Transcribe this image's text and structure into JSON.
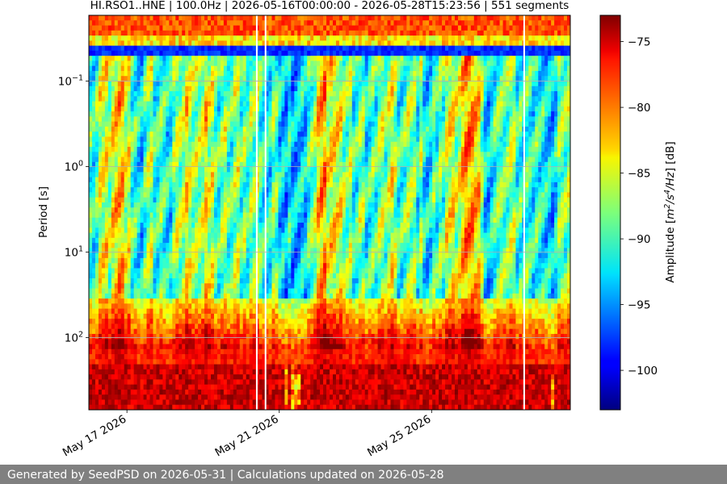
{
  "chart_data": {
    "type": "heatmap",
    "title": "HI.RSO1..HNE | 100.0Hz | 2026-05-16T00:00:00 - 2026-05-28T15:23:56 | 551 segments",
    "ylabel": "Period [s]",
    "y_scale": "log",
    "y_inverted": true,
    "ylim": [
      0.017,
      700
    ],
    "y_tick_labels": [
      {
        "value": 0.1,
        "base": "10",
        "exp": "−1"
      },
      {
        "value": 1,
        "base": "10",
        "exp": "0"
      },
      {
        "value": 10,
        "base": "10",
        "exp": "1"
      },
      {
        "value": 100,
        "base": "10",
        "exp": "2"
      }
    ],
    "xlim": [
      "2026-05-16T00:00:00",
      "2026-05-28T15:23:56"
    ],
    "x_tick_labels": [
      {
        "date": "2026-05-17",
        "label": "May 17 2026"
      },
      {
        "date": "2026-05-21",
        "label": "May 21 2026"
      },
      {
        "date": "2026-05-25",
        "label": "May 25 2026"
      }
    ],
    "grid": true,
    "segments": 551,
    "data_gaps": [
      [
        "2026-05-20T09:20",
        "2026-05-20T09:45"
      ],
      [
        "2026-05-20T14:50",
        "2026-05-20T15:05"
      ],
      [
        "2026-05-27T09:50",
        "2026-05-27T10:25"
      ]
    ],
    "colorbar": {
      "label_prefix": "Amplitude [",
      "label_unit_html": "m<sup>2</sup>/s<sup>4</sup>/Hz",
      "label_suffix": "] [dB]",
      "range": [
        -103,
        -73
      ],
      "ticks": [
        -75,
        -80,
        -85,
        -90,
        -95,
        -100
      ],
      "tick_labels": [
        "−75",
        "−80",
        "−85",
        "−90",
        "−95",
        "−100"
      ],
      "colormap": "jet"
    }
  },
  "footer": {
    "text": "Generated by SeedPSD on 2026-05-31 | Calculations updated on 2026-05-28"
  }
}
